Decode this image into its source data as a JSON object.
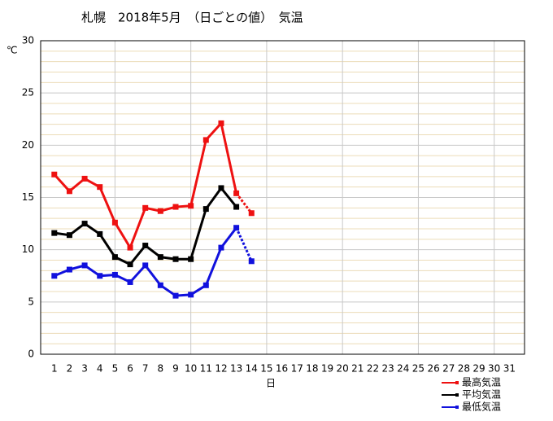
{
  "chart_data": {
    "type": "line",
    "title": "札幌　2018年5月　（日ごとの値）　気温",
    "y_label": "℃",
    "x_label": "日",
    "x": [
      1,
      2,
      3,
      4,
      5,
      6,
      7,
      8,
      9,
      10,
      11,
      12,
      13,
      14
    ],
    "series": [
      {
        "name": "最高気温",
        "color": "#ee1111",
        "values": [
          17.2,
          15.6,
          16.8,
          16.0,
          12.6,
          10.2,
          14.0,
          13.7,
          14.1,
          14.2,
          20.5,
          22.1,
          15.4,
          13.5
        ]
      },
      {
        "name": "平均気温",
        "color": "#000000",
        "values": [
          11.6,
          11.4,
          12.5,
          11.5,
          9.3,
          8.6,
          10.4,
          9.3,
          9.1,
          9.1,
          13.9,
          15.9,
          14.1,
          null
        ]
      },
      {
        "name": "最低気温",
        "color": "#1111dd",
        "values": [
          7.5,
          8.1,
          8.5,
          7.5,
          7.6,
          6.9,
          8.5,
          6.6,
          5.6,
          5.7,
          6.6,
          10.2,
          12.1,
          8.9
        ]
      }
    ],
    "xlim": [
      0.1,
      32
    ],
    "xticks": [
      1,
      2,
      3,
      4,
      5,
      6,
      7,
      8,
      9,
      10,
      11,
      12,
      13,
      14,
      15,
      16,
      17,
      18,
      19,
      20,
      21,
      22,
      23,
      24,
      25,
      26,
      27,
      28,
      29,
      30,
      31
    ],
    "ylim": [
      0,
      30
    ],
    "yticks": [
      0,
      5,
      10,
      15,
      20,
      25,
      30
    ],
    "grid": true,
    "legend": "lower right"
  }
}
